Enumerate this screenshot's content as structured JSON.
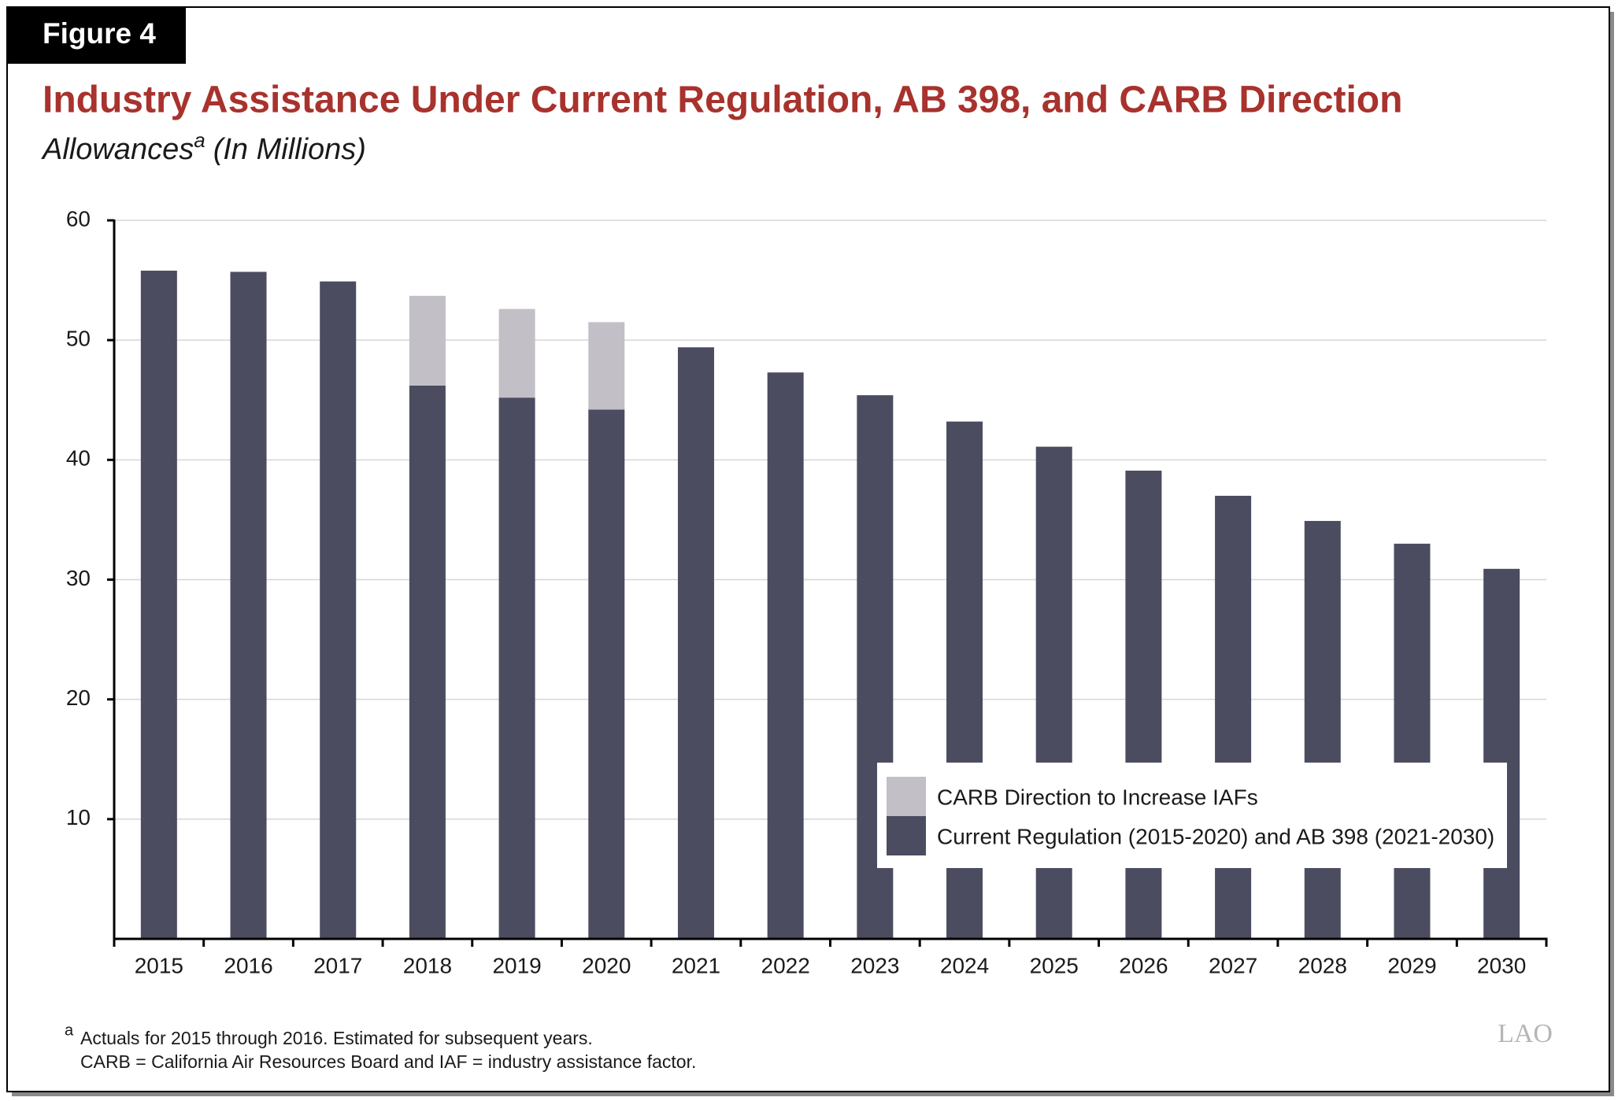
{
  "figure_label": "Figure 4",
  "chart_data": {
    "type": "stacked_bar",
    "title": "Industry Assistance Under Current Regulation, AB 398, and CARB Direction",
    "subtitle": {
      "text": "Allowances",
      "superscript": "a",
      "units": "(In Millions)"
    },
    "categories": [
      "2015",
      "2016",
      "2017",
      "2018",
      "2019",
      "2020",
      "2021",
      "2022",
      "2023",
      "2024",
      "2025",
      "2026",
      "2027",
      "2028",
      "2029",
      "2030"
    ],
    "series": [
      {
        "name": "Current Regulation (2015-2020) and AB 398 (2021-2030)",
        "color": "#4b4c60",
        "values": [
          55.8,
          55.7,
          54.9,
          46.2,
          45.2,
          44.2,
          49.4,
          47.3,
          45.4,
          43.2,
          41.1,
          39.1,
          37.0,
          34.9,
          33.0,
          30.9
        ]
      },
      {
        "name": "CARB Direction to Increase IAFs",
        "color": "#c2bfc6",
        "values": [
          null,
          null,
          null,
          7.5,
          7.4,
          7.3,
          null,
          null,
          null,
          null,
          null,
          null,
          null,
          null,
          null,
          null
        ]
      }
    ],
    "ylim": [
      0,
      60
    ],
    "yticks": [
      10,
      20,
      30,
      40,
      50,
      60
    ],
    "grid": true,
    "legend": "lower right"
  },
  "footnote": {
    "marker": "a",
    "lines": [
      "Actuals for 2015 through 2016. Estimated for subsequent years.",
      "CARB = California Air Resources Board and IAF = industry assistance factor."
    ]
  },
  "logo": "LAO"
}
